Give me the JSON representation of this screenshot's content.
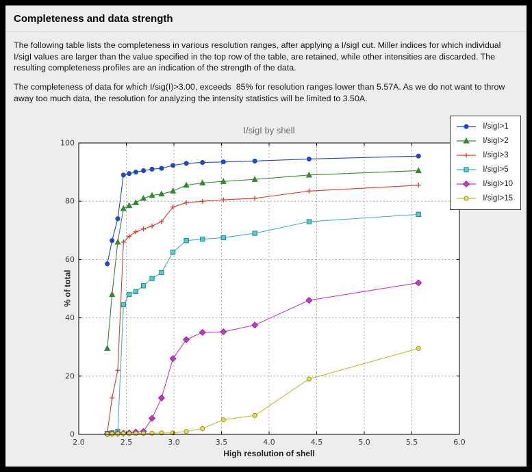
{
  "window": {
    "title": "Completeness and data strength"
  },
  "intro": {
    "paragraph1": "The following table lists the completeness in various resolution ranges, after applying a I/sigI cut. Miller indices for which individual I/sigI values are larger than the value specified in the top row of the table, are retained, while other intensities are discarded. The resulting completeness profiles are an indication of the strength of the data.",
    "paragraph2": "The completeness of data for which I/sig(I)>3.00, exceeds  85% for resolution ranges lower than 5.57A. As we do not want to throw away too much data, the resolution for analyzing the intensity statistics will be limited to 3.50A."
  },
  "chart_data": {
    "type": "line",
    "title": "I/sigI by shell",
    "xlabel": "High resolution of shell",
    "ylabel": "% of total",
    "xlim": [
      2.0,
      6.0
    ],
    "ylim": [
      0,
      100
    ],
    "xticks": [
      2.0,
      2.5,
      3.0,
      3.5,
      4.0,
      4.5,
      5.0,
      5.5,
      6.0
    ],
    "xtick_labels": [
      "2.0",
      "2.5",
      "3.0",
      "3.5",
      "4.0",
      "4.5",
      "5.0",
      "5.5",
      "6.0"
    ],
    "yticks": [
      0,
      20,
      40,
      60,
      80,
      100
    ],
    "ytick_labels": [
      "0",
      "20",
      "40",
      "60",
      "80",
      "100"
    ],
    "grid": "dashed",
    "legend_position": "upper right",
    "x": [
      2.3,
      2.35,
      2.41,
      2.47,
      2.53,
      2.6,
      2.68,
      2.77,
      2.87,
      2.99,
      3.13,
      3.3,
      3.52,
      3.85,
      4.42,
      5.57
    ],
    "series": [
      {
        "name": "I/sigI>1",
        "color": "#2146c7",
        "marker": "circle",
        "values": [
          58.5,
          66.5,
          74.0,
          89.0,
          89.5,
          90.0,
          90.5,
          91.0,
          91.3,
          92.3,
          93.0,
          93.3,
          93.5,
          93.8,
          94.5,
          95.5
        ]
      },
      {
        "name": "I/sigI>2",
        "color": "#338a33",
        "marker": "triangle",
        "values": [
          29.5,
          48.0,
          66.0,
          77.5,
          78.5,
          79.5,
          81.0,
          82.0,
          82.5,
          83.5,
          85.5,
          86.3,
          86.8,
          87.5,
          89.0,
          90.5
        ]
      },
      {
        "name": "I/sigI>3",
        "color": "#dc3c2c",
        "marker": "plus",
        "values": [
          0.5,
          12.5,
          22.0,
          66.0,
          68.0,
          69.5,
          70.5,
          71.5,
          73.0,
          78.0,
          79.5,
          80.0,
          80.5,
          81.0,
          83.5,
          85.5
        ]
      },
      {
        "name": "I/sigI>5",
        "color": "#3cb4b4",
        "marker": "square",
        "marker_fill": "#55cccc",
        "marker_edge": "#1f7f7f",
        "values": [
          0.3,
          0.5,
          1.0,
          44.5,
          48.0,
          49.0,
          51.0,
          53.5,
          55.5,
          62.5,
          66.5,
          67.0,
          67.5,
          69.0,
          73.0,
          75.5
        ]
      },
      {
        "name": "I/sigI>10",
        "color": "#c836c8",
        "marker": "diamond",
        "marker_edge": "#8e218e",
        "values": [
          0.2,
          0.3,
          0.3,
          0.4,
          0.5,
          0.8,
          1.0,
          5.5,
          12.5,
          26.0,
          32.5,
          35.0,
          35.2,
          37.5,
          46.0,
          52.0
        ]
      },
      {
        "name": "I/sigI>15",
        "color": "#c2bc35",
        "marker": "circle",
        "marker_fill": "#e8e24e",
        "marker_edge": "#8f8a1d",
        "values": [
          0.1,
          0.2,
          0.2,
          0.3,
          0.3,
          0.3,
          0.3,
          0.4,
          0.5,
          0.5,
          1.0,
          2.0,
          5.0,
          6.5,
          19.0,
          29.5
        ]
      }
    ]
  }
}
